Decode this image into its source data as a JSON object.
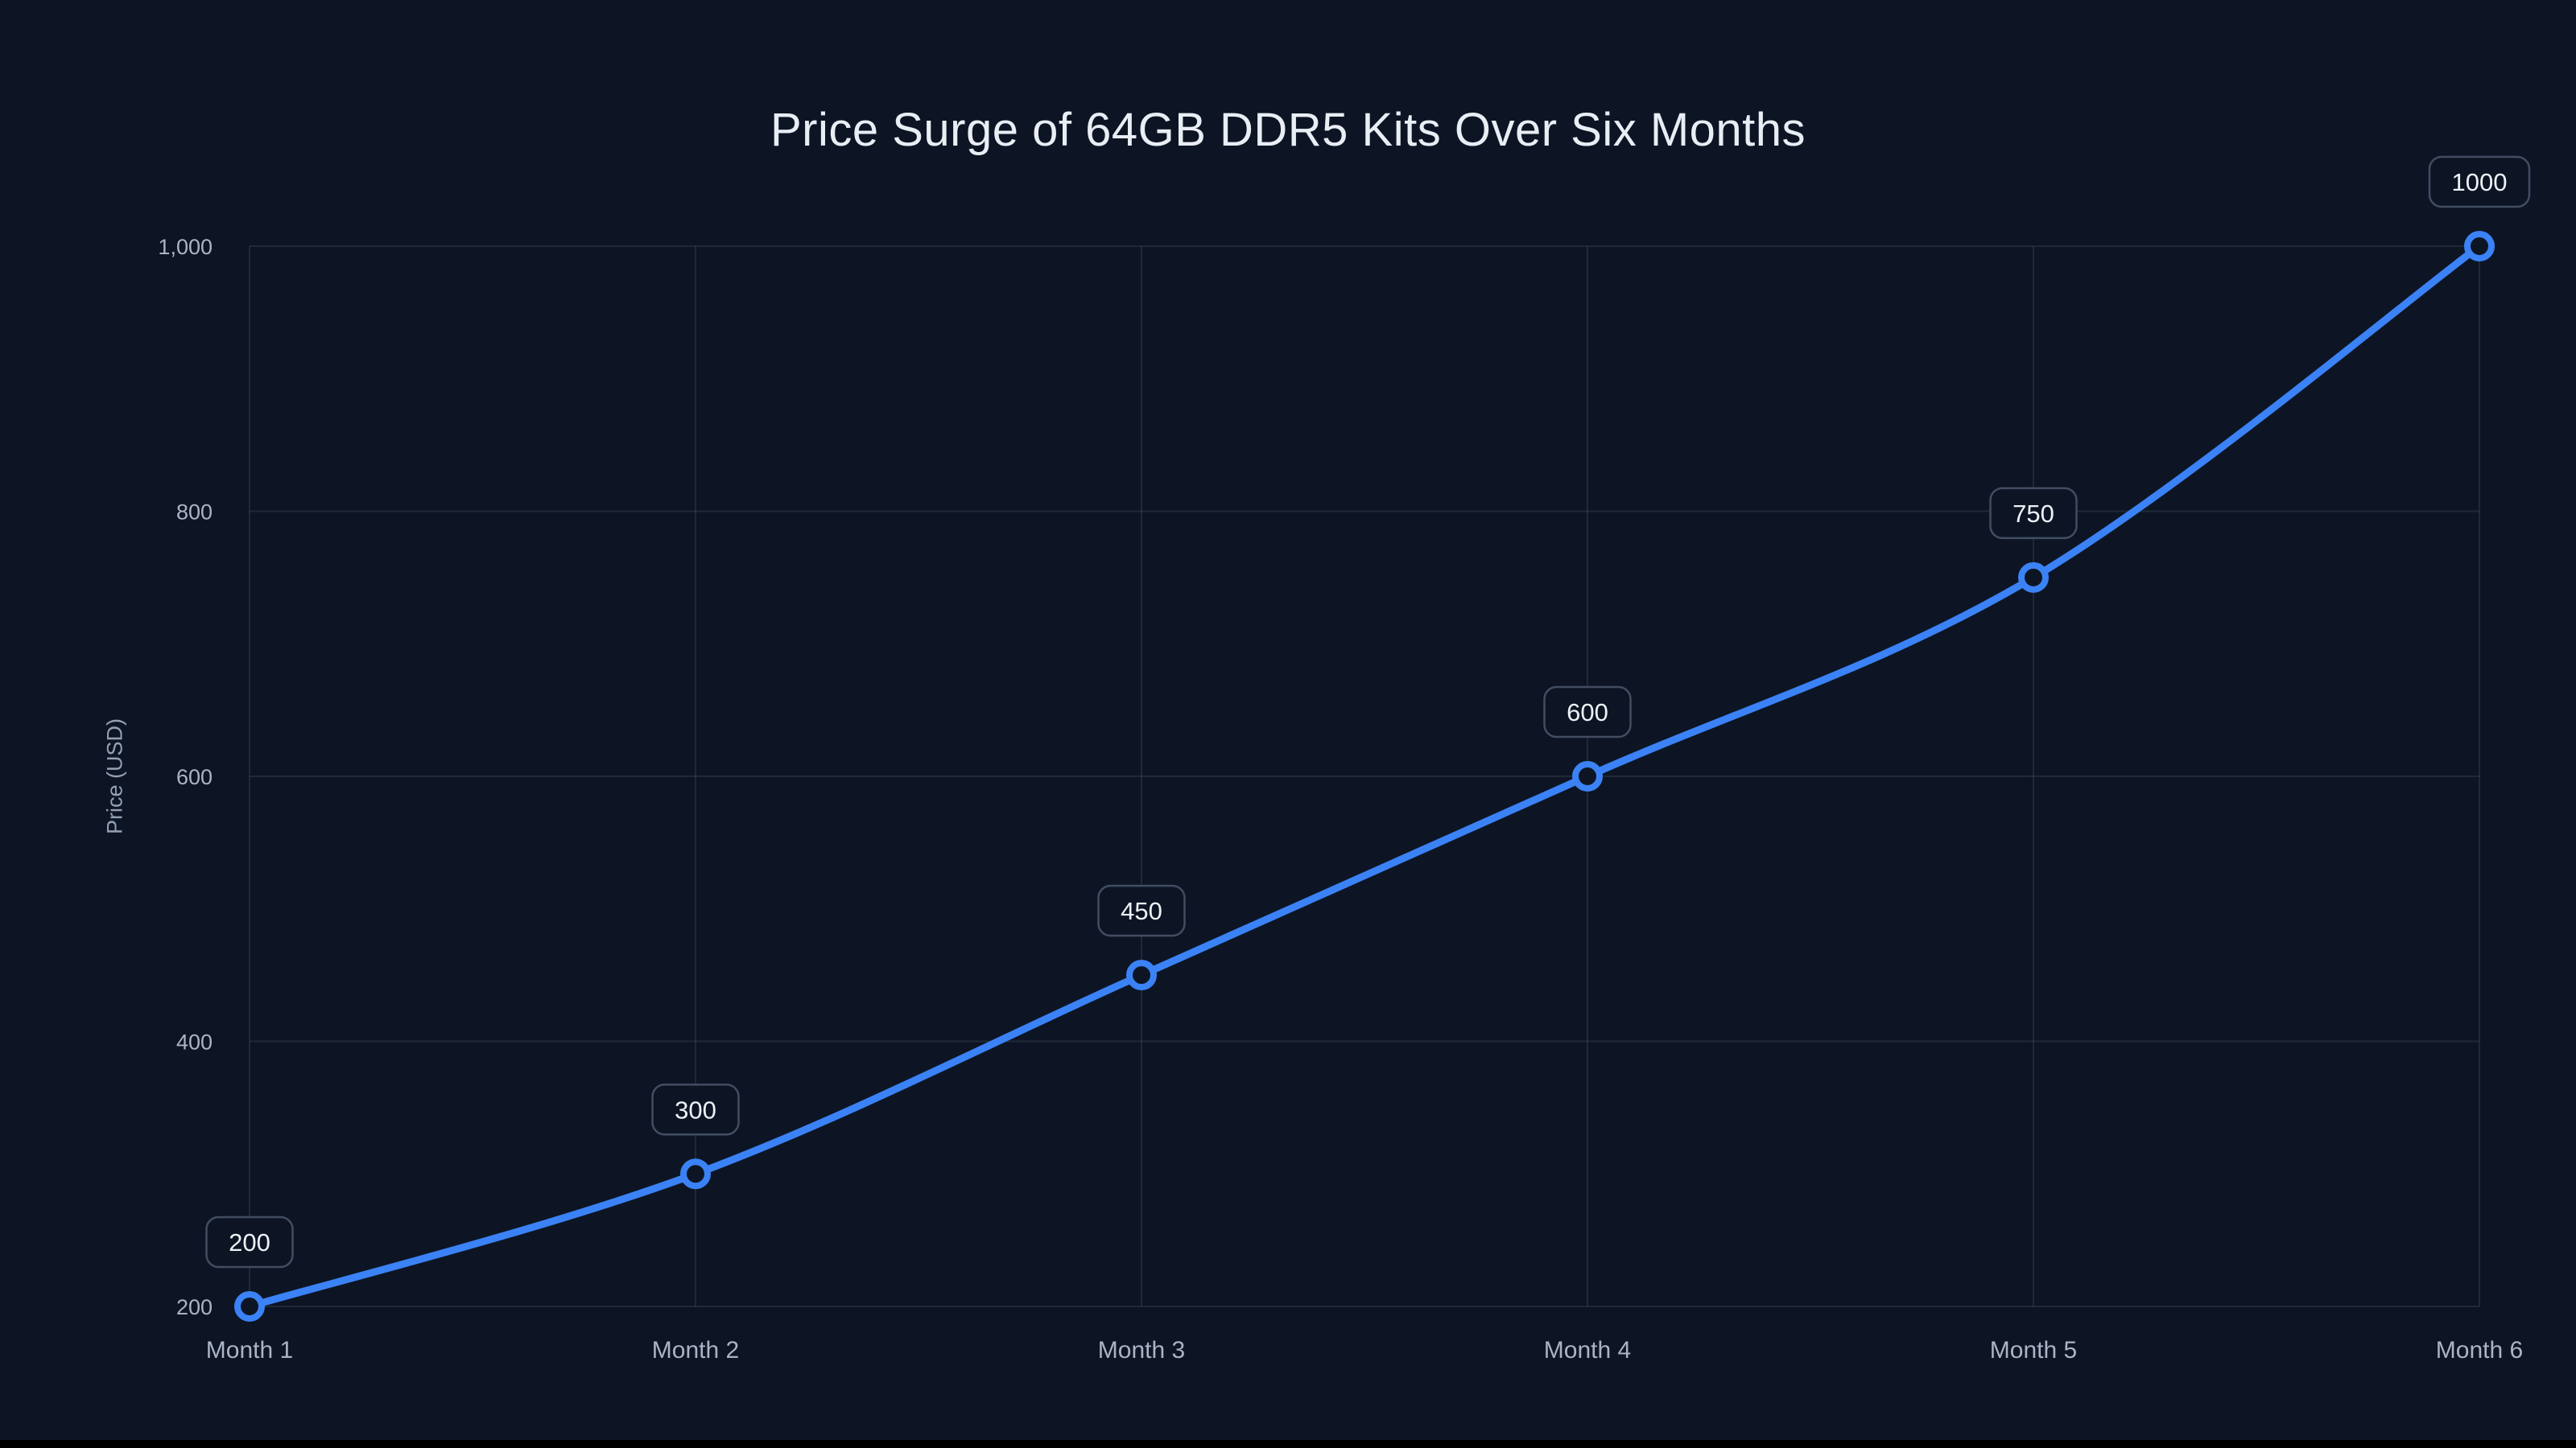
{
  "colors": {
    "background": "#0d1524",
    "line": "#3b82f6",
    "grid": "rgba(148, 163, 184, 0.14)",
    "title": "#e9edf4",
    "tick": "#aab4c4",
    "axis_label": "#93a0b4",
    "badge_bg": "#0d1524",
    "badge_border": "#424d62",
    "badge_text": "#eef1f6"
  },
  "chart_data": {
    "type": "line",
    "title": "Price Surge of 64GB DDR5 Kits Over Six Months",
    "xlabel": "",
    "ylabel": "Price (USD)",
    "categories": [
      "Month 1",
      "Month 2",
      "Month 3",
      "Month 4",
      "Month 5",
      "Month 6"
    ],
    "series": [
      {
        "name": "Price (USD)",
        "values": [
          200,
          300,
          450,
          600,
          750,
          1000
        ]
      }
    ],
    "point_labels": [
      "200",
      "300",
      "450",
      "600",
      "750",
      "1000"
    ],
    "ylim": [
      200,
      1000
    ],
    "yticks": [
      200,
      400,
      600,
      800,
      1000
    ],
    "ytick_labels": [
      "200",
      "400",
      "600",
      "800",
      "1,000"
    ],
    "grid": true,
    "legend_position": "none",
    "smooth": true
  }
}
